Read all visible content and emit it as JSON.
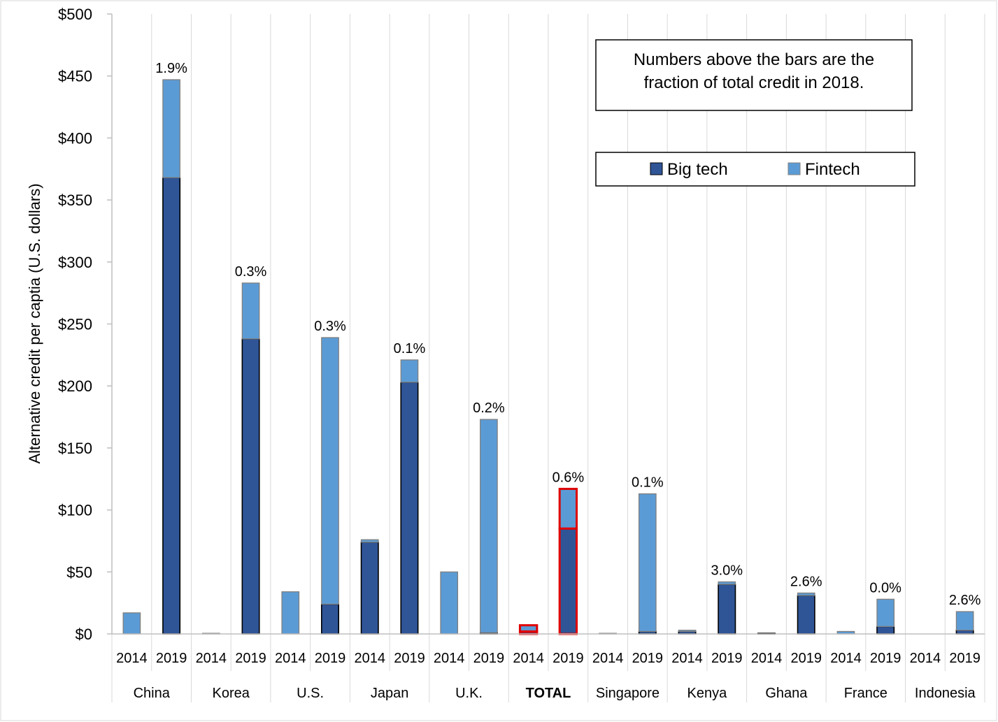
{
  "chart_data": {
    "type": "bar",
    "stacked": true,
    "title": "",
    "xlabel": "",
    "ylabel": "Alternative credit per captia (U.S. dollars)",
    "ylim": [
      0,
      500
    ],
    "yticks": [
      0,
      50,
      100,
      150,
      200,
      250,
      300,
      350,
      400,
      450,
      500
    ],
    "ytick_labels": [
      "$0",
      "$50",
      "$100",
      "$150",
      "$200",
      "$250",
      "$300",
      "$350",
      "$400",
      "$450",
      "$500"
    ],
    "grid": "vertical lines between groups and years",
    "legend_position": "top-right",
    "colors": {
      "big_tech": "#2f5597",
      "fintech": "#5b9bd5",
      "highlight": "#e00000"
    },
    "series": [
      {
        "name": "Big tech",
        "color": "#2f5597"
      },
      {
        "name": "Fintech",
        "color": "#5b9bd5"
      }
    ],
    "note": [
      "Numbers above the bars are the",
      "fraction of total credit in 2018."
    ],
    "groups": [
      {
        "country": "China",
        "highlight": false,
        "bars": [
          {
            "year": "2014",
            "big_tech": 0,
            "fintech": 17,
            "label": ""
          },
          {
            "year": "2019",
            "big_tech": 368,
            "fintech": 79,
            "label": "1.9%"
          }
        ]
      },
      {
        "country": "Korea",
        "highlight": false,
        "bars": [
          {
            "year": "2014",
            "big_tech": 0,
            "fintech": 0.5,
            "label": ""
          },
          {
            "year": "2019",
            "big_tech": 238,
            "fintech": 45,
            "label": "0.3%"
          }
        ]
      },
      {
        "country": "U.S.",
        "highlight": false,
        "bars": [
          {
            "year": "2014",
            "big_tech": 0,
            "fintech": 34,
            "label": ""
          },
          {
            "year": "2019",
            "big_tech": 24,
            "fintech": 215,
            "label": "0.3%"
          }
        ]
      },
      {
        "country": "Japan",
        "highlight": false,
        "bars": [
          {
            "year": "2014",
            "big_tech": 74,
            "fintech": 2,
            "label": ""
          },
          {
            "year": "2019",
            "big_tech": 203,
            "fintech": 18,
            "label": "0.1%"
          }
        ]
      },
      {
        "country": "U.K.",
        "highlight": false,
        "bars": [
          {
            "year": "2014",
            "big_tech": 0,
            "fintech": 50,
            "label": ""
          },
          {
            "year": "2019",
            "big_tech": 1,
            "fintech": 172,
            "label": "0.2%"
          }
        ]
      },
      {
        "country": "TOTAL",
        "highlight": true,
        "bars": [
          {
            "year": "2014",
            "big_tech": 2,
            "fintech": 5,
            "label": ""
          },
          {
            "year": "2019",
            "big_tech": 85,
            "fintech": 32,
            "label": "0.6%"
          }
        ]
      },
      {
        "country": "Singapore",
        "highlight": false,
        "bars": [
          {
            "year": "2014",
            "big_tech": 0,
            "fintech": 0.5,
            "label": ""
          },
          {
            "year": "2019",
            "big_tech": 2,
            "fintech": 111,
            "label": "0.1%"
          }
        ]
      },
      {
        "country": "Kenya",
        "highlight": false,
        "bars": [
          {
            "year": "2014",
            "big_tech": 2,
            "fintech": 1,
            "label": ""
          },
          {
            "year": "2019",
            "big_tech": 40,
            "fintech": 2,
            "label": "3.0%"
          }
        ]
      },
      {
        "country": "Ghana",
        "highlight": false,
        "bars": [
          {
            "year": "2014",
            "big_tech": 0.5,
            "fintech": 0,
            "label": ""
          },
          {
            "year": "2019",
            "big_tech": 31,
            "fintech": 2,
            "label": "2.6%"
          }
        ]
      },
      {
        "country": "France",
        "highlight": false,
        "bars": [
          {
            "year": "2014",
            "big_tech": 0,
            "fintech": 2,
            "label": ""
          },
          {
            "year": "2019",
            "big_tech": 6,
            "fintech": 22,
            "label": "0.0%"
          }
        ]
      },
      {
        "country": "Indonesia",
        "highlight": false,
        "bars": [
          {
            "year": "2014",
            "big_tech": 0,
            "fintech": 0,
            "label": ""
          },
          {
            "year": "2019",
            "big_tech": 3,
            "fintech": 15,
            "label": "2.6%"
          }
        ]
      }
    ]
  }
}
